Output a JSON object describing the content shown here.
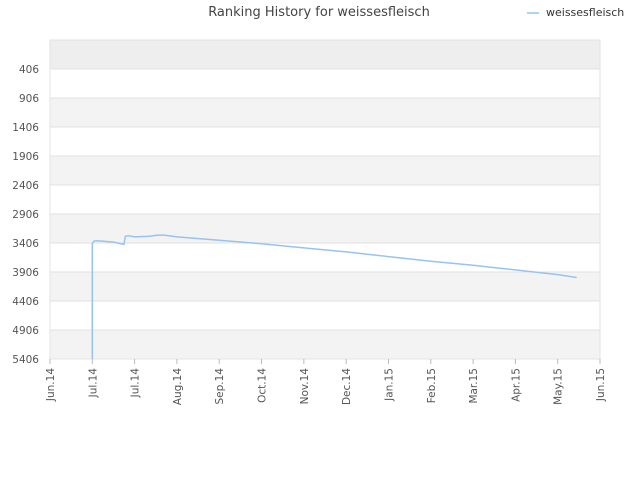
{
  "chart_data": {
    "type": "line",
    "title": "Ranking History for weissesfleisch",
    "xlabel": "",
    "ylabel": "",
    "y_inverted": true,
    "ylim": [
      -94,
      5406
    ],
    "y_ticks": [
      406,
      906,
      1406,
      1906,
      2406,
      2906,
      3406,
      3906,
      4406,
      4906,
      5406
    ],
    "x_tick_labels": [
      "Jun.14",
      "Jul.14",
      "Jul.14",
      "Aug.14",
      "Sep.14",
      "Oct.14",
      "Nov.14",
      "Dec.14",
      "Jan.15",
      "Feb.15",
      "Mar.15",
      "Apr.15",
      "May.15",
      "Jun.15"
    ],
    "legend_position": "top-right",
    "grid": true,
    "series": [
      {
        "name": "weissesfleisch",
        "color": "#99c3ef",
        "x": [
          1.0,
          1.0,
          1.05,
          1.15,
          1.5,
          1.75,
          1.78,
          1.85,
          2.0,
          2.35,
          2.55,
          2.7,
          3.0,
          4.0,
          5.0,
          6.0,
          7.0,
          8.0,
          9.0,
          10.0,
          11.0,
          12.0,
          12.45
        ],
        "y": [
          5406,
          3410,
          3370,
          3370,
          3390,
          3430,
          3290,
          3280,
          3300,
          3290,
          3270,
          3270,
          3300,
          3360,
          3420,
          3490,
          3560,
          3640,
          3720,
          3790,
          3870,
          3950,
          4000
        ]
      }
    ]
  }
}
